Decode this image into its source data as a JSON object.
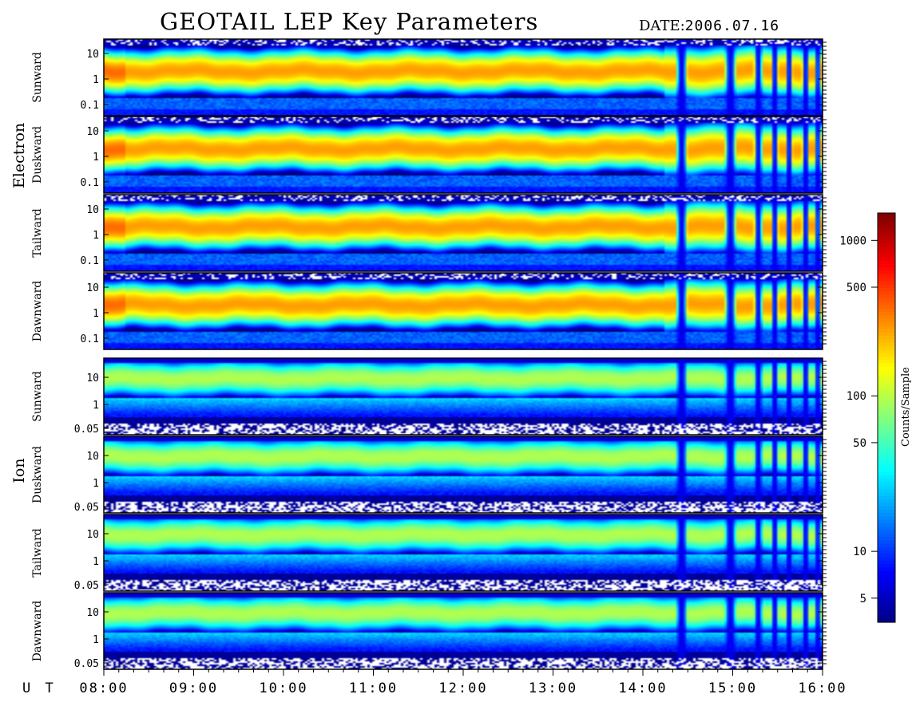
{
  "title": "GEOTAIL LEP Key Parameters",
  "date_label": "DATE:",
  "date_value": "2006.07.16",
  "ut_label": "U T",
  "colorbar_label": "Counts/Sample",
  "colors": {
    "saturation": "#ffffff",
    "low": "#000000",
    "high": "#d01010"
  },
  "chart_data": {
    "type": "heatmap",
    "x_axis": {
      "ticks": [
        "08:00",
        "09:00",
        "10:00",
        "11:00",
        "12:00",
        "13:00",
        "14:00",
        "15:00",
        "16:00"
      ],
      "range": [
        "08:00",
        "16:00"
      ]
    },
    "colorbar": {
      "scale": "log",
      "range": [
        3.5,
        1500
      ],
      "ticks": [
        5,
        10,
        50,
        100,
        500,
        1000
      ],
      "tick_labels": [
        "5",
        "10",
        "50",
        "100",
        "500",
        "1000"
      ]
    },
    "groups": [
      {
        "label": "Electron",
        "panels": [
          {
            "label": "Sunward",
            "y_scale": "log",
            "y_ticks": [
              "10",
              "1",
              "0.1"
            ]
          },
          {
            "label": "Duskward",
            "y_scale": "log",
            "y_ticks": [
              "10",
              "1",
              "0.1"
            ]
          },
          {
            "label": "Tailward",
            "y_scale": "log",
            "y_ticks": [
              "10",
              "1",
              "0.1"
            ]
          },
          {
            "label": "Dawnward",
            "y_scale": "log",
            "y_ticks": [
              "10",
              "1",
              "0.1"
            ]
          }
        ]
      },
      {
        "label": "Ion",
        "panels": [
          {
            "label": "Sunward",
            "y_scale": "log",
            "y_ticks": [
              "10",
              "1",
              "0.05"
            ]
          },
          {
            "label": "Duskward",
            "y_scale": "log",
            "y_ticks": [
              "10",
              "1",
              "0.05"
            ]
          },
          {
            "label": "Tailward",
            "y_scale": "log",
            "y_ticks": [
              "10",
              "1",
              "0.05"
            ]
          },
          {
            "label": "Dawnward",
            "y_scale": "log",
            "y_ticks": [
              "10",
              "1",
              "0.05"
            ]
          }
        ]
      }
    ]
  }
}
